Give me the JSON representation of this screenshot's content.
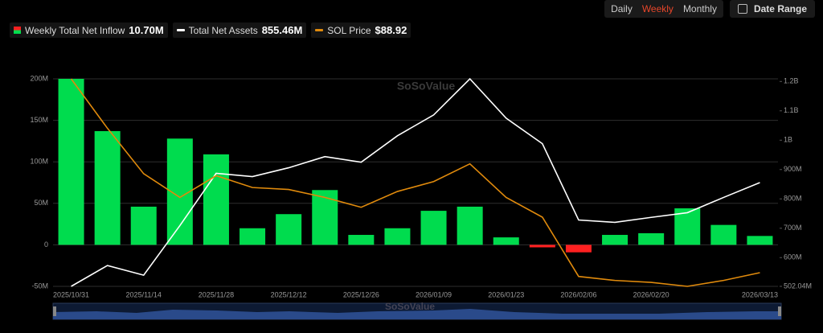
{
  "controls": {
    "views": [
      "Daily",
      "Weekly",
      "Monthly"
    ],
    "active_view": 1,
    "date_range": "Date Range"
  },
  "chart_data": {
    "type": "combo",
    "watermark": "SoSoValue",
    "categories": [
      "2025/10/31",
      null,
      "2025/11/14",
      null,
      "2025/11/28",
      null,
      "2025/12/12",
      null,
      "2025/12/26",
      null,
      "2026/01/09",
      null,
      "2026/01/23",
      null,
      "2026/02/06",
      null,
      "2026/02/20",
      null,
      null,
      "2026/03/13"
    ],
    "series": [
      {
        "name": "Weekly Total Net Inflow",
        "latest": "10.70M",
        "type": "bar",
        "axis": "y",
        "color": "#00dc4e",
        "negative_color": "#ff2020",
        "values": [
          200,
          137,
          46,
          128,
          109,
          20,
          37,
          66,
          12,
          20,
          41,
          46,
          9,
          -3,
          -9,
          12,
          14,
          44,
          24,
          10.7
        ]
      },
      {
        "name": "Total Net Assets",
        "latest": "855.46M",
        "type": "line",
        "axis": "y2",
        "color": "#ffffff",
        "values": [
          502.04,
          573,
          540,
          709,
          887,
          876,
          906,
          944,
          925,
          1015,
          1086,
          1209,
          1075,
          988,
          728,
          720,
          737,
          753,
          805,
          855.46
        ]
      },
      {
        "name": "SOL Price",
        "latest": "$88.92",
        "type": "line",
        "axis": "y3",
        "color": "#e08a0c",
        "values": [
          187,
          162,
          139,
          127,
          138,
          132,
          131,
          127,
          122,
          130,
          135,
          144,
          127,
          117,
          87,
          85,
          84,
          82,
          85,
          88.92
        ]
      }
    ],
    "ylim": [
      -50,
      200
    ],
    "yticks": [
      {
        "value": 200,
        "label": "200M"
      },
      {
        "value": 150,
        "label": "150M"
      },
      {
        "value": 100,
        "label": "100M"
      },
      {
        "value": 50,
        "label": "50M"
      },
      0,
      {
        "value": -50,
        "label": "-50M"
      }
    ],
    "y2lim": [
      502.04,
      1209
    ],
    "y2ticks": [
      {
        "value": 1200,
        "label": "1.2B"
      },
      {
        "value": 1100,
        "label": "1.1B"
      },
      {
        "value": 1000,
        "label": "1B"
      },
      {
        "value": 900,
        "label": "900M"
      },
      {
        "value": 800,
        "label": "800M"
      },
      {
        "value": 700,
        "label": "700M"
      },
      {
        "value": 600,
        "label": "600M"
      },
      {
        "value": 502.04,
        "label": "502.04M"
      }
    ],
    "y3lim": [
      82,
      187
    ],
    "grid": true
  }
}
